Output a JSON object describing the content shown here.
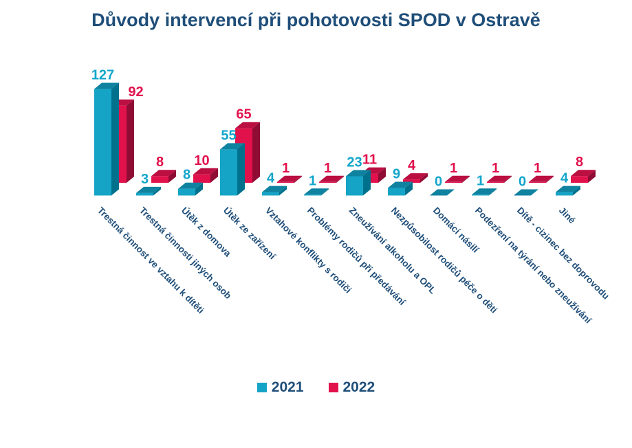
{
  "title": "Důvody intervencí při pohotovosti SPOD v Ostravě",
  "colors": {
    "title_text": "#1F4E79",
    "category_label_text": "#1F4E79",
    "background": "#FFFFFF",
    "series_2021": "#15A4C6",
    "series_2022": "#E1114C"
  },
  "legend": {
    "position": "bottom",
    "items": [
      {
        "label": "2021",
        "color": "#15A4C6"
      },
      {
        "label": "2022",
        "color": "#E1114C"
      }
    ]
  },
  "chart_data": {
    "type": "bar",
    "style": "3d-column",
    "title": "Důvody intervencí při pohotovosti SPOD v Ostravě",
    "xlabel": "",
    "ylabel": "",
    "gridlines": false,
    "axes_visible": false,
    "data_labels": true,
    "legend_position": "bottom",
    "categories": [
      "Trestná činnost ve vztahu k dítěti",
      "Trestná činnosti jiných osob",
      "Útěk z domova",
      "Útěk ze zařízení",
      "Vztahové konflikty s rodiči",
      "Problémy rodičů při předávání",
      "Zneužívání alkoholu a OPL",
      "Nezpůsobilost rodičů péče o děti",
      "Domácí násilí",
      "Podezření na týrání nebo zneužívání",
      "Dítě - cizinec bez doprovodu",
      "Jiné"
    ],
    "series": [
      {
        "name": "2021",
        "color": "#15A4C6",
        "color_top": "#0F82A0",
        "color_side": "#00718D",
        "label_color": "#12A5CB",
        "values": [
          127,
          3,
          8,
          55,
          4,
          1,
          23,
          9,
          0,
          1,
          0,
          4
        ]
      },
      {
        "name": "2022",
        "color": "#E1114C",
        "color_top": "#BB0F42",
        "color_side": "#8F0C34",
        "label_color": "#E1114C",
        "values": [
          92,
          8,
          10,
          65,
          1,
          1,
          11,
          4,
          1,
          1,
          1,
          8
        ]
      }
    ]
  }
}
